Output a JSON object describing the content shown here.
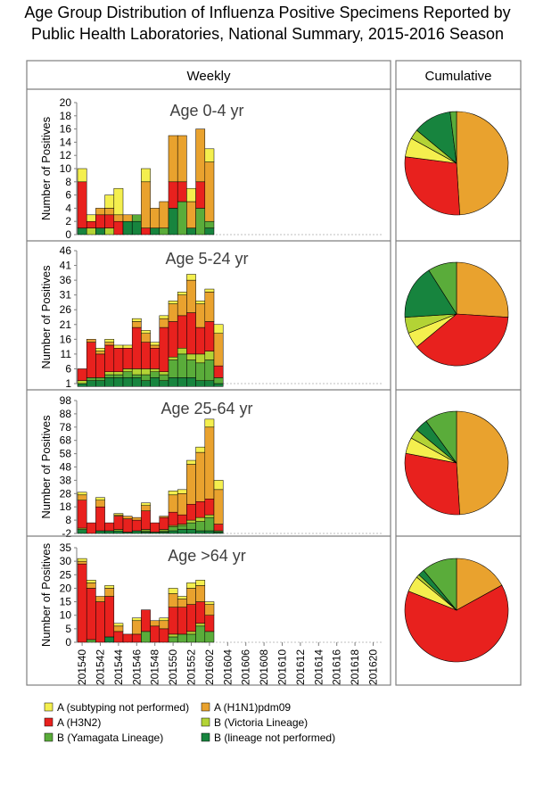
{
  "title_line1": "Age Group Distribution of Influenza Positive Specimens Reported by",
  "title_line2": "Public Health Laboratories, National Summary, 2015-2016 Season",
  "weekly_header": "Weekly",
  "cumulative_header": "Cumulative",
  "y_axis_label": "Number of Positives",
  "colors": {
    "a_unsub": "#f4ef4e",
    "a_h1n1": "#e9a22e",
    "a_h3n2": "#e8211e",
    "b_victoria": "#b3d335",
    "b_yamagata": "#5aac3a",
    "b_notperf": "#17843e"
  },
  "legend": [
    {
      "key": "a_unsub",
      "label": "A (subtyping not performed)"
    },
    {
      "key": "a_h1n1",
      "label": "A (H1N1)pdm09"
    },
    {
      "key": "a_h3n2",
      "label": "A (H3N2)"
    },
    {
      "key": "b_victoria",
      "label": "B (Victoria Lineage)"
    },
    {
      "key": "b_yamagata",
      "label": "B (Yamagata Lineage)"
    },
    {
      "key": "b_notperf",
      "label": "B (lineage not performed)"
    }
  ],
  "chart_data": {
    "type": "bar",
    "stacked": true,
    "series_order": [
      "b_notperf",
      "b_yamagata",
      "b_victoria",
      "a_h3n2",
      "a_h1n1",
      "a_unsub"
    ],
    "week_count": 33,
    "x_tick_labels": [
      "201540",
      "201542",
      "201544",
      "201546",
      "201548",
      "201550",
      "201552",
      "201602",
      "201604",
      "201606",
      "201608",
      "201610",
      "201612",
      "201614",
      "201616",
      "201618",
      "201620"
    ],
    "panels": [
      {
        "title": "Age 0-4 yr",
        "ylim": [
          0,
          20
        ],
        "y_ticks": [
          "0",
          "2",
          "4",
          "6",
          "8",
          "10",
          "12",
          "14",
          "16",
          "18",
          "20"
        ],
        "weeks": [
          [
            1,
            0,
            0,
            7,
            0,
            2
          ],
          [
            0,
            0,
            1,
            1,
            0,
            1
          ],
          [
            1,
            0,
            0,
            2,
            1,
            0
          ],
          [
            0,
            0,
            1,
            2,
            1,
            2
          ],
          [
            0,
            0,
            0,
            2,
            1,
            4
          ],
          [
            2,
            0,
            0,
            0,
            1,
            0
          ],
          [
            2,
            1,
            0,
            0,
            0,
            0
          ],
          [
            0,
            0,
            0,
            1,
            7,
            2
          ],
          [
            1,
            0,
            0,
            0,
            3,
            0
          ],
          [
            0,
            1,
            0,
            0,
            4,
            0
          ],
          [
            4,
            0,
            0,
            4,
            7,
            0
          ],
          [
            0,
            5,
            0,
            3,
            7,
            0
          ],
          [
            1,
            0,
            0,
            0,
            4,
            2
          ],
          [
            0,
            4,
            0,
            4,
            8,
            0
          ],
          [
            1,
            1,
            0,
            0,
            9,
            2
          ]
        ],
        "pie": {
          "a_h1n1": 49,
          "a_h3n2": 28,
          "a_unsub": 6,
          "b_victoria": 3,
          "b_notperf": 12,
          "b_yamagata": 2
        }
      },
      {
        "title": "Age 5-24 yr",
        "ylim": [
          1,
          46
        ],
        "y_ticks": [
          "1",
          "6",
          "11",
          "16",
          "21",
          "26",
          "31",
          "36",
          "41",
          "46"
        ],
        "weeks": [
          [
            1,
            0,
            1,
            4,
            0,
            0
          ],
          [
            2,
            1,
            0,
            12,
            1,
            0
          ],
          [
            2,
            1,
            0,
            8,
            1,
            1
          ],
          [
            3,
            1,
            1,
            9,
            1,
            1
          ],
          [
            3,
            1,
            1,
            8,
            0,
            1
          ],
          [
            3,
            2,
            1,
            7,
            0,
            1
          ],
          [
            3,
            1,
            2,
            14,
            2,
            1
          ],
          [
            2,
            2,
            2,
            9,
            3,
            1
          ],
          [
            3,
            2,
            1,
            7,
            1,
            1
          ],
          [
            2,
            2,
            1,
            15,
            3,
            1
          ],
          [
            3,
            6,
            1,
            12,
            6,
            1
          ],
          [
            3,
            8,
            2,
            11,
            7,
            1
          ],
          [
            3,
            6,
            2,
            14,
            11,
            2
          ],
          [
            2,
            6,
            3,
            9,
            8,
            1
          ],
          [
            2,
            7,
            3,
            10,
            10,
            1
          ],
          [
            1,
            2,
            0,
            4,
            11,
            3
          ]
        ],
        "pie": {
          "a_h1n1": 26,
          "a_h3n2": 38,
          "a_unsub": 5,
          "b_victoria": 5,
          "b_notperf": 17,
          "b_yamagata": 9
        }
      },
      {
        "title": "Age 25-64 yr",
        "ylim": [
          -2,
          98
        ],
        "y_ticks": [
          "-2",
          "8",
          "18",
          "28",
          "38",
          "48",
          "58",
          "68",
          "78",
          "88",
          "98"
        ],
        "weeks": [
          [
            3,
            0,
            1,
            21,
            4,
            2
          ],
          [
            0,
            0,
            0,
            8,
            0,
            0
          ],
          [
            2,
            0,
            0,
            18,
            5,
            2
          ],
          [
            2,
            0,
            0,
            6,
            0,
            0
          ],
          [
            2,
            0,
            1,
            10,
            1,
            1
          ],
          [
            1,
            0,
            0,
            10,
            2,
            0
          ],
          [
            2,
            0,
            0,
            8,
            2,
            0
          ],
          [
            1,
            1,
            1,
            14,
            4,
            2
          ],
          [
            1,
            0,
            0,
            7,
            0,
            0
          ],
          [
            1,
            1,
            1,
            9,
            1,
            0
          ],
          [
            2,
            3,
            1,
            10,
            13,
            3
          ],
          [
            3,
            3,
            1,
            7,
            16,
            3
          ],
          [
            3,
            5,
            2,
            12,
            30,
            3
          ],
          [
            2,
            7,
            3,
            12,
            37,
            4
          ],
          [
            2,
            10,
            2,
            12,
            54,
            6
          ],
          [
            1,
            1,
            0,
            5,
            26,
            7
          ]
        ],
        "pie": {
          "a_h1n1": 49,
          "a_h3n2": 29,
          "a_unsub": 5,
          "b_victoria": 3,
          "b_notperf": 4,
          "b_yamagata": 10
        }
      },
      {
        "title": "Age >64 yr",
        "ylim": [
          0,
          35
        ],
        "y_ticks": [
          "0",
          "5",
          "10",
          "15",
          "20",
          "25",
          "30",
          "35"
        ],
        "weeks": [
          [
            0,
            0,
            0,
            29,
            1,
            1
          ],
          [
            0,
            1,
            0,
            19,
            2,
            1
          ],
          [
            0,
            0,
            0,
            15,
            2,
            0
          ],
          [
            2,
            0,
            0,
            15,
            3,
            1
          ],
          [
            0,
            0,
            0,
            4,
            2,
            1
          ],
          [
            0,
            0,
            0,
            3,
            0,
            0
          ],
          [
            0,
            0,
            0,
            3,
            5,
            1
          ],
          [
            0,
            4,
            0,
            8,
            0,
            0
          ],
          [
            0,
            0,
            0,
            6,
            2,
            0
          ],
          [
            0,
            0,
            0,
            5,
            3,
            1
          ],
          [
            0,
            2,
            1,
            10,
            5,
            2
          ],
          [
            0,
            3,
            0,
            10,
            3,
            1
          ],
          [
            0,
            3,
            1,
            10,
            6,
            2
          ],
          [
            0,
            6,
            1,
            8,
            6,
            2
          ],
          [
            0,
            4,
            0,
            6,
            4,
            1
          ]
        ],
        "pie": {
          "a_h1n1": 17,
          "a_h3n2": 64,
          "a_unsub": 5,
          "b_victoria": 1,
          "b_notperf": 2,
          "b_yamagata": 11
        }
      }
    ]
  }
}
